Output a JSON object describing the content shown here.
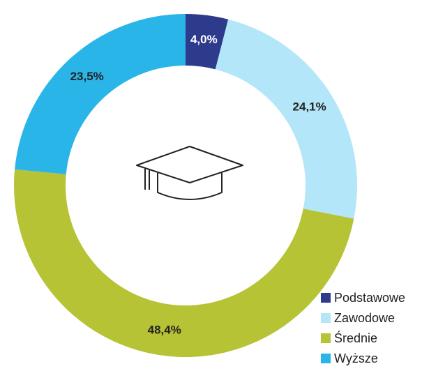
{
  "chart_data": {
    "type": "donut",
    "categories": [
      "Podstawowe",
      "Zawodowe",
      "Średnie",
      "Wyższe"
    ],
    "values": [
      4.0,
      24.1,
      48.4,
      23.5
    ],
    "value_labels": [
      "4,0%",
      "24,1%",
      "48,4%",
      "23,5%"
    ],
    "colors": [
      "#2e3a8c",
      "#b3e6f8",
      "#b5c334",
      "#29b5e8"
    ],
    "legend": "bottom-right"
  }
}
